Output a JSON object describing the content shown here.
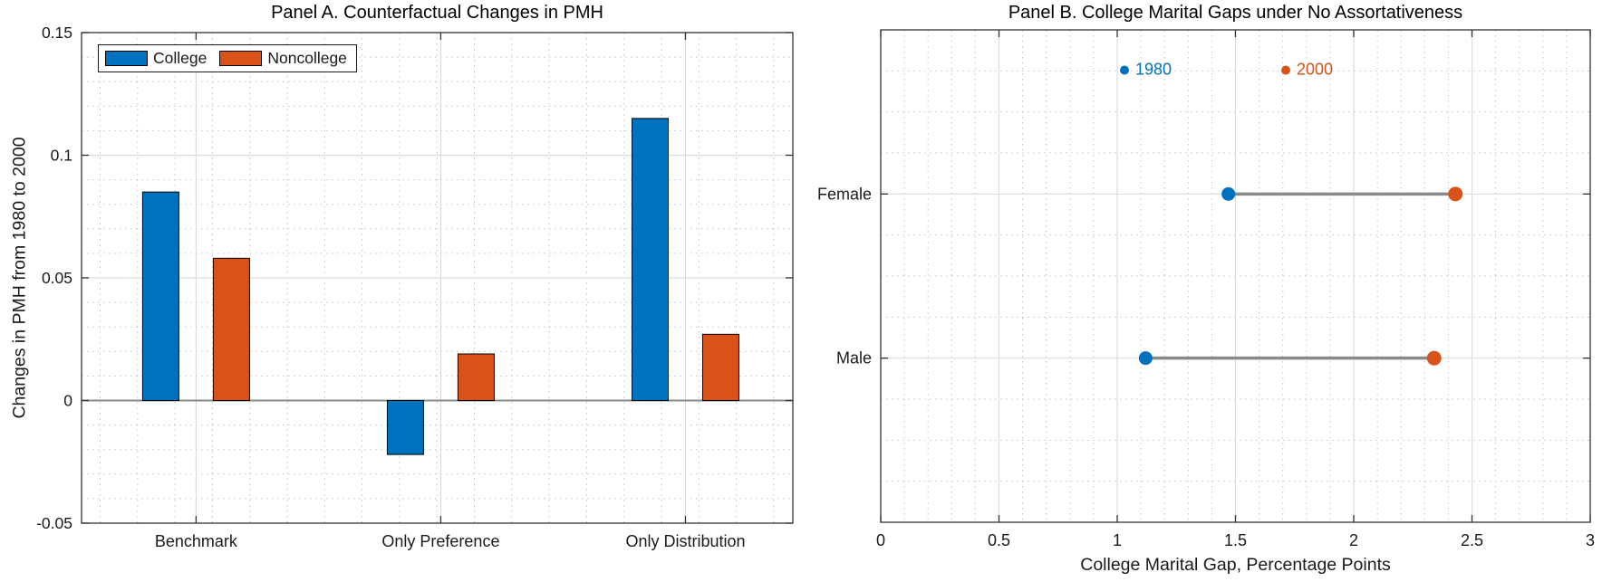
{
  "figure": {
    "background": "#FFFFFF",
    "axis_color": "#333333",
    "major_grid_color": "#DCDCDC",
    "minor_grid_color": "#C4C4C4",
    "zero_line_color": "#8A8A8A",
    "text_color": "#1A1A1A"
  },
  "chart_data": [
    {
      "id": "panel_a",
      "type": "bar",
      "title": "Panel A. Counterfactual Changes in PMH",
      "xlabel": "",
      "ylabel": "Changes in PMH from 1980 to 2000",
      "categories": [
        "Benchmark",
        "Only Preference",
        "Only Distribution"
      ],
      "series": [
        {
          "name": "College",
          "color": "#0072BD",
          "values": [
            0.085,
            -0.022,
            0.115
          ]
        },
        {
          "name": "Noncollege",
          "color": "#D95319",
          "values": [
            0.058,
            0.019,
            0.027
          ]
        }
      ],
      "ylim": [
        -0.05,
        0.15
      ],
      "yticks": [
        0.15,
        0.1,
        0.05,
        0,
        -0.05
      ],
      "ytick_labels": [
        "0.15",
        "0.1",
        "0.05",
        "0",
        "-0.05"
      ],
      "bar_edge_color": "#000000",
      "grid": "major-solid + minor-dotted",
      "legend_position": "top-left-inside"
    },
    {
      "id": "panel_b",
      "type": "scatter",
      "subtype": "dumbbell",
      "title": "Panel B. College Marital Gaps under No Assortativeness",
      "xlabel": "College Marital Gap, Percentage Points",
      "ylabel": "",
      "categories": [
        "Female",
        "Male"
      ],
      "series": [
        {
          "name": "1980",
          "color": "#0072BD",
          "values": {
            "Female": 1.47,
            "Male": 1.12
          }
        },
        {
          "name": "2000",
          "color": "#D95319",
          "values": {
            "Female": 2.43,
            "Male": 2.34
          }
        }
      ],
      "xlim": [
        0,
        3
      ],
      "xticks": [
        0,
        0.5,
        1,
        1.5,
        2,
        2.5,
        3
      ],
      "xtick_labels": [
        "0",
        "0.5",
        "1",
        "1.5",
        "2",
        "2.5",
        "3"
      ],
      "connector_color": "#8A8A8A",
      "grid": "major-solid + minor-dotted",
      "legend_position": "inside-top"
    }
  ]
}
